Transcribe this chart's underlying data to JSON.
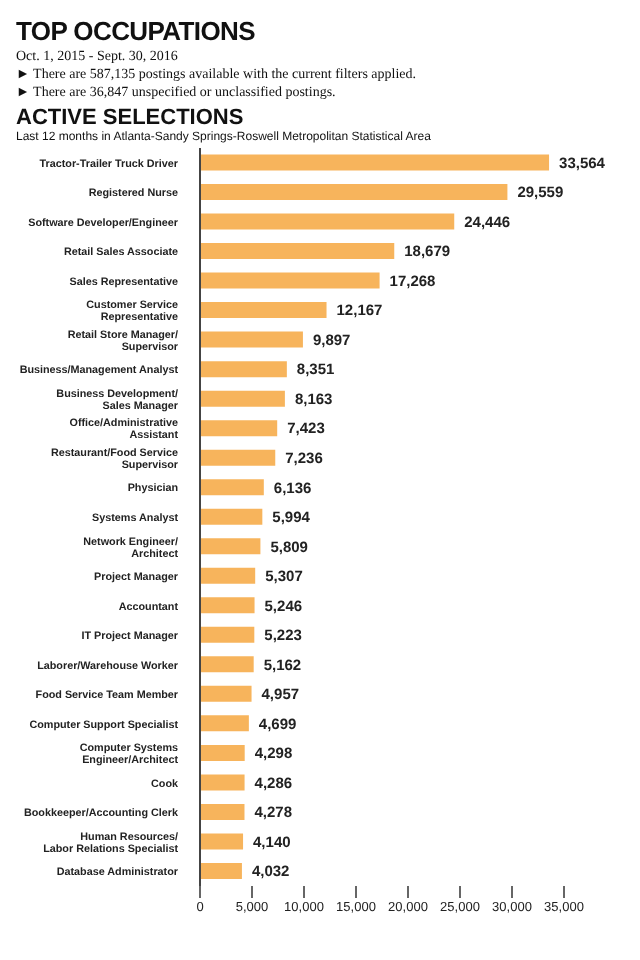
{
  "chart_data": {
    "type": "bar",
    "orientation": "horizontal",
    "title": "TOP OCCUPATIONS",
    "subtitle": "Oct. 1, 2015 - Sept. 30, 2016",
    "annotations": [
      "► There are 587,135 postings available with the current filters applied.",
      "► There are 36,847 unspecified or unclassified postings.",
      "ACTIVE SELECTIONS",
      "Last 12 months in Atlanta-Sandy Springs-Roswell Metropolitan Statistical Area"
    ],
    "categories": [
      "Tractor-Trailer Truck Driver",
      "Registered Nurse",
      "Software Developer/Engineer",
      "Retail Sales Associate",
      "Sales Representative",
      "Customer Service Representative",
      "Retail Store Manager/ Supervisor",
      "Business/Management Analyst",
      "Business Development/ Sales Manager",
      "Office/Administrative Assistant",
      "Restaurant/Food Service Supervisor",
      "Physician",
      "Systems Analyst",
      "Network Engineer/ Architect",
      "Project Manager",
      "Accountant",
      "IT Project Manager",
      "Laborer/Warehouse Worker",
      "Food Service Team Member",
      "Computer Support Specialist",
      "Computer Systems Engineer/Architect",
      "Cook",
      "Bookkeeper/Accounting Clerk",
      "Human Resources/ Labor Relations Specialist",
      "Database Administrator"
    ],
    "values": [
      33564,
      29559,
      24446,
      18679,
      17268,
      12167,
      9897,
      8351,
      8163,
      7423,
      7236,
      6136,
      5994,
      5809,
      5307,
      5246,
      5223,
      5162,
      4957,
      4699,
      4298,
      4286,
      4278,
      4140,
      4032
    ],
    "value_labels": [
      "33,564",
      "29,559",
      "24,446",
      "18,679",
      "17,268",
      "12,167",
      "9,897",
      "8,351",
      "8,163",
      "7,423",
      "7,236",
      "6,136",
      "5,994",
      "5,809",
      "5,307",
      "5,246",
      "5,223",
      "5,162",
      "4,957",
      "4,699",
      "4,298",
      "4,286",
      "4,278",
      "4,140",
      "4,032"
    ],
    "color": "#f7b45c",
    "xlim": [
      0,
      35000
    ],
    "xticks": [
      0,
      {
        "value": 5000,
        "label": "5,000"
      },
      {
        "value": 10000,
        "label": "10,000"
      },
      {
        "value": 15000,
        "label": "15,000"
      },
      {
        "value": 20000,
        "label": "20,000"
      },
      {
        "value": 25000,
        "label": "25,000"
      },
      {
        "value": 30000,
        "label": "30,000"
      },
      {
        "value": 35000,
        "label": "35,000"
      }
    ]
  }
}
